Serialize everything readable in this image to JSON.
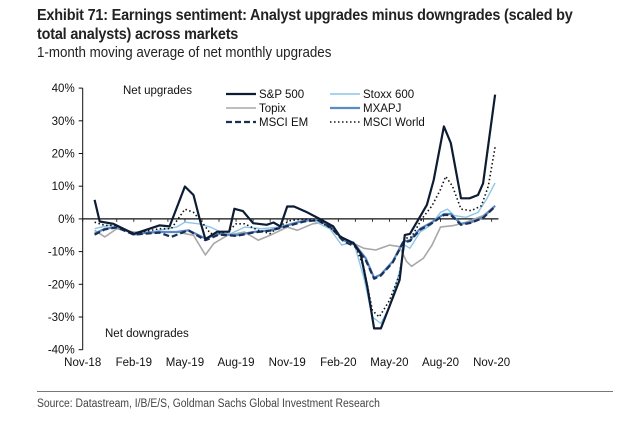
{
  "chart_data": {
    "type": "line",
    "title": "Exhibit 71: Earnings sentiment: Analyst upgrades minus downgrades (scaled by total analysts) across markets",
    "subtitle": "1-month moving average of net monthly upgrades",
    "xlabel": "",
    "ylabel": "",
    "x_unit": "months since Nov-18",
    "xlim": [
      0,
      24
    ],
    "ylim": [
      -40,
      40
    ],
    "yticks": [
      40,
      30,
      20,
      10,
      0,
      -10,
      -20,
      -30,
      -40
    ],
    "ytick_labels": [
      "40%",
      "30%",
      "20%",
      "10%",
      "0%",
      "-10%",
      "-20%",
      "-30%",
      "-40%"
    ],
    "xticks": [
      0,
      3,
      6,
      9,
      12,
      15,
      18,
      21,
      24
    ],
    "xtick_labels": [
      "Nov-18",
      "Feb-19",
      "May-19",
      "Aug-19",
      "Nov-19",
      "Feb-20",
      "May-20",
      "Aug-20",
      "Nov-20"
    ],
    "annotations": [
      "Net upgrades",
      "Net downgrades"
    ],
    "legend_position": "top-center",
    "grid": false,
    "series": [
      {
        "name": "S&P 500",
        "color": "#0d1b33",
        "style": "solid",
        "width": 2.2,
        "points": [
          [
            0.7,
            5.8
          ],
          [
            1.0,
            -0.8
          ],
          [
            1.8,
            -1.5
          ],
          [
            3.0,
            -4.6
          ],
          [
            4.5,
            -2
          ],
          [
            5.1,
            -2.3
          ],
          [
            6.0,
            9.9
          ],
          [
            6.5,
            7.3
          ],
          [
            6.9,
            -0.8
          ],
          [
            7.2,
            -6.2
          ],
          [
            7.9,
            -3.9
          ],
          [
            8.6,
            -3.9
          ],
          [
            8.9,
            3.1
          ],
          [
            9.4,
            2.4
          ],
          [
            10.0,
            -1.3
          ],
          [
            10.8,
            -1.8
          ],
          [
            11.2,
            -1.1
          ],
          [
            11.6,
            -2.3
          ],
          [
            12.0,
            3.8
          ],
          [
            12.4,
            3.8
          ],
          [
            13.1,
            2.2
          ],
          [
            13.9,
            0
          ],
          [
            14.7,
            -2.3
          ],
          [
            15.1,
            -5.4
          ],
          [
            15.9,
            -7.4
          ],
          [
            16.3,
            -10.5
          ],
          [
            16.7,
            -20.7
          ],
          [
            17.1,
            -33.5
          ],
          [
            17.5,
            -33.5
          ],
          [
            18.0,
            -26.8
          ],
          [
            18.6,
            -18.7
          ],
          [
            18.9,
            -4.9
          ],
          [
            19.2,
            -4.6
          ],
          [
            19.8,
            0.7
          ],
          [
            20.2,
            4.3
          ],
          [
            20.6,
            11.9
          ],
          [
            21.2,
            28.3
          ],
          [
            21.6,
            23.2
          ],
          [
            22.2,
            6.3
          ],
          [
            22.7,
            6.3
          ],
          [
            23.2,
            7.3
          ],
          [
            23.5,
            10.9
          ],
          [
            24.2,
            38
          ]
        ]
      },
      {
        "name": "Stoxx 600",
        "color": "#8cc6ea",
        "style": "solid",
        "width": 1.4,
        "points": [
          [
            0.7,
            -3
          ],
          [
            1.5,
            -2
          ],
          [
            2.2,
            -2.5
          ],
          [
            3.0,
            -5
          ],
          [
            4.5,
            -3.5
          ],
          [
            5.5,
            -2.5
          ],
          [
            6.0,
            -1
          ],
          [
            6.8,
            -1.5
          ],
          [
            7.5,
            -2.5
          ],
          [
            8.5,
            -5
          ],
          [
            9.5,
            -2.5
          ],
          [
            10.5,
            -3
          ],
          [
            11.5,
            -2.5
          ],
          [
            12.5,
            -1
          ],
          [
            13.5,
            -0.5
          ],
          [
            14.5,
            -3
          ],
          [
            15.2,
            -8
          ],
          [
            15.9,
            -7
          ],
          [
            16.5,
            -18
          ],
          [
            17.0,
            -30
          ],
          [
            17.5,
            -32
          ],
          [
            18.0,
            -27
          ],
          [
            18.6,
            -16
          ],
          [
            18.9,
            -8
          ],
          [
            19.2,
            -9
          ],
          [
            19.8,
            -4
          ],
          [
            20.4,
            -2
          ],
          [
            21.0,
            2
          ],
          [
            21.4,
            3
          ],
          [
            21.8,
            1
          ],
          [
            22.5,
            0.5
          ],
          [
            23.2,
            2
          ],
          [
            23.7,
            6
          ],
          [
            24.2,
            11
          ]
        ]
      },
      {
        "name": "Topix",
        "color": "#a8a8a8",
        "style": "solid",
        "width": 1.6,
        "points": [
          [
            0.7,
            -3.5
          ],
          [
            1.3,
            -5.5
          ],
          [
            2.0,
            -3
          ],
          [
            3.0,
            -4
          ],
          [
            4.5,
            -4
          ],
          [
            5.5,
            -4
          ],
          [
            6.5,
            -5
          ],
          [
            7.2,
            -11
          ],
          [
            7.7,
            -7.5
          ],
          [
            8.5,
            -5
          ],
          [
            9.5,
            -4
          ],
          [
            10.3,
            -6.5
          ],
          [
            11.0,
            -5
          ],
          [
            12.0,
            -2.5
          ],
          [
            12.6,
            -3.5
          ],
          [
            13.5,
            -1.5
          ],
          [
            14.2,
            -1
          ],
          [
            15.0,
            -5
          ],
          [
            15.9,
            -7.5
          ],
          [
            16.5,
            -9
          ],
          [
            17.2,
            -9.5
          ],
          [
            18.0,
            -8
          ],
          [
            18.6,
            -8.5
          ],
          [
            19.0,
            -13
          ],
          [
            19.3,
            -14.5
          ],
          [
            20.0,
            -12
          ],
          [
            20.5,
            -8
          ],
          [
            21.0,
            -2.5
          ],
          [
            21.8,
            -2
          ],
          [
            22.5,
            -1
          ],
          [
            23.5,
            1
          ],
          [
            24.2,
            4
          ]
        ]
      },
      {
        "name": "MXAPJ",
        "color": "#5b8bc5",
        "style": "solid",
        "width": 2.2,
        "points": [
          [
            0.7,
            -4.5
          ],
          [
            1.3,
            -3
          ],
          [
            2.0,
            -2.5
          ],
          [
            3.0,
            -4.5
          ],
          [
            4.5,
            -4
          ],
          [
            5.5,
            -4
          ],
          [
            6.2,
            -3.5
          ],
          [
            7.2,
            -6
          ],
          [
            8.0,
            -4.5
          ],
          [
            9.0,
            -5
          ],
          [
            10.0,
            -4
          ],
          [
            11.0,
            -3.5
          ],
          [
            12.0,
            -2
          ],
          [
            13.0,
            -0.5
          ],
          [
            13.8,
            -0.3
          ],
          [
            14.6,
            -2.5
          ],
          [
            15.3,
            -6.5
          ],
          [
            16.0,
            -8
          ],
          [
            16.6,
            -12
          ],
          [
            17.1,
            -18
          ],
          [
            17.5,
            -17
          ],
          [
            18.2,
            -13
          ],
          [
            18.8,
            -7
          ],
          [
            19.2,
            -6.5
          ],
          [
            19.8,
            -3
          ],
          [
            20.5,
            -1
          ],
          [
            21.2,
            1.5
          ],
          [
            21.6,
            1.5
          ],
          [
            22.2,
            -1.5
          ],
          [
            22.8,
            -1
          ],
          [
            23.5,
            0.5
          ],
          [
            24.2,
            4
          ]
        ]
      },
      {
        "name": "MSCI EM",
        "color": "#1b2f57",
        "style": "dashed",
        "width": 2.2,
        "points": [
          [
            0.7,
            -4.8
          ],
          [
            1.3,
            -3.2
          ],
          [
            2.0,
            -2.6
          ],
          [
            3.0,
            -4.8
          ],
          [
            4.5,
            -4.2
          ],
          [
            5.2,
            -5.5
          ],
          [
            6.2,
            -3.5
          ],
          [
            7.2,
            -6.5
          ],
          [
            8.0,
            -4.8
          ],
          [
            9.0,
            -5.2
          ],
          [
            10.0,
            -4.2
          ],
          [
            11.0,
            -3.6
          ],
          [
            12.0,
            -2.2
          ],
          [
            13.0,
            -0.8
          ],
          [
            13.8,
            -0.4
          ],
          [
            14.6,
            -2.8
          ],
          [
            15.3,
            -6.8
          ],
          [
            16.0,
            -8.5
          ],
          [
            16.6,
            -12.5
          ],
          [
            17.1,
            -18.3
          ],
          [
            17.5,
            -17.3
          ],
          [
            18.2,
            -13.3
          ],
          [
            18.8,
            -7.2
          ],
          [
            19.2,
            -6.8
          ],
          [
            19.8,
            -3.3
          ],
          [
            20.5,
            -1.3
          ],
          [
            21.2,
            1.2
          ],
          [
            21.6,
            1.2
          ],
          [
            22.2,
            -1.8
          ],
          [
            22.8,
            -1.2
          ],
          [
            23.5,
            0.3
          ],
          [
            24.2,
            3.8
          ]
        ]
      },
      {
        "name": "MSCI World",
        "color": "#111111",
        "style": "dotted",
        "width": 1.6,
        "points": [
          [
            0.7,
            -1
          ],
          [
            1.3,
            -2
          ],
          [
            2.0,
            -2
          ],
          [
            3.0,
            -4.5
          ],
          [
            4.5,
            -3
          ],
          [
            5.2,
            -3
          ],
          [
            6.0,
            3
          ],
          [
            6.5,
            2
          ],
          [
            7.0,
            -1
          ],
          [
            7.5,
            -4.5
          ],
          [
            8.5,
            -4
          ],
          [
            9.0,
            -1.5
          ],
          [
            9.5,
            -1.5
          ],
          [
            10.3,
            -3.5
          ],
          [
            11.0,
            -4.5
          ],
          [
            11.6,
            -2
          ],
          [
            12.2,
            -0.5
          ],
          [
            13.0,
            0
          ],
          [
            13.8,
            -0.5
          ],
          [
            14.6,
            -3
          ],
          [
            15.3,
            -6
          ],
          [
            16.0,
            -8
          ],
          [
            16.5,
            -15
          ],
          [
            17.0,
            -28
          ],
          [
            17.4,
            -30
          ],
          [
            18.0,
            -25
          ],
          [
            18.6,
            -17
          ],
          [
            18.9,
            -6
          ],
          [
            19.3,
            -5.5
          ],
          [
            19.9,
            0
          ],
          [
            20.5,
            4
          ],
          [
            21.0,
            9
          ],
          [
            21.3,
            13
          ],
          [
            21.7,
            10
          ],
          [
            22.2,
            3
          ],
          [
            22.8,
            2.5
          ],
          [
            23.4,
            4
          ],
          [
            23.8,
            10
          ],
          [
            24.2,
            22
          ]
        ]
      }
    ]
  },
  "footer": {
    "source": "Source: Datastream, I/B/E/S, Goldman Sachs Global Investment Research"
  }
}
